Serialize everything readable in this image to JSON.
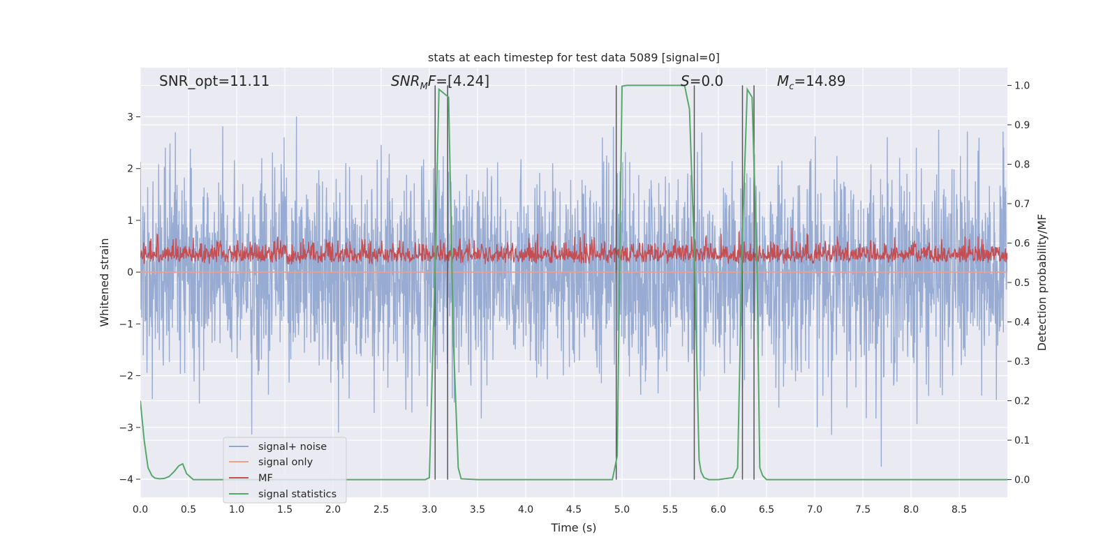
{
  "chart_data": {
    "type": "line",
    "title": "stats at each timestep for test data 5089 [signal=0]",
    "xlabel": "Time (s)",
    "ylabel_left": "Whitened strain",
    "ylabel_right": "Detection probability/MF",
    "xlim": [
      0.0,
      9.0
    ],
    "ylim_left": [
      -4.35,
      3.95
    ],
    "ylim_right": [
      -0.045,
      1.045
    ],
    "x_ticks": [
      "0.0",
      "0.5",
      "1.0",
      "1.5",
      "2.0",
      "2.5",
      "3.0",
      "3.5",
      "4.0",
      "4.5",
      "5.0",
      "5.5",
      "6.0",
      "6.5",
      "7.0",
      "7.5",
      "8.0",
      "8.5"
    ],
    "y_ticks_left": [
      "−4",
      "−3",
      "−2",
      "−1",
      "0",
      "1",
      "2",
      "3"
    ],
    "y_ticks_right": [
      "0.0",
      "0.1",
      "0.2",
      "0.3",
      "0.4",
      "0.5",
      "0.6",
      "0.7",
      "0.8",
      "0.9",
      "1.0"
    ],
    "grid": true,
    "annotations": {
      "snr_opt": "SNR_opt=11.11",
      "snr_mf_main": "SNR",
      "snr_mf_sub": "M",
      "snr_mf_rest": "F=[4.24]",
      "s_main": "S",
      "s_rest": "=0.0",
      "mc_main": "M",
      "mc_sub": "c",
      "mc_rest": "=14.89"
    },
    "legend": {
      "position": "lower-left",
      "entries": [
        "signal+ noise",
        "signal only",
        "MF",
        "signal statistics"
      ]
    },
    "series": [
      {
        "name": "signal+ noise",
        "axis": "left",
        "color": "#92a8d1",
        "style": "dense noise, range approx -4.0 to 3.6"
      },
      {
        "name": "signal only",
        "axis": "left",
        "color": "#e8a28a",
        "value": 0.0
      },
      {
        "name": "MF",
        "axis": "right",
        "color": "#c44e52",
        "style": "noise around 0.55, range approx 0.51 to 0.65"
      },
      {
        "name": "signal statistics",
        "axis": "right",
        "color": "#55a868",
        "x": [
          0.0,
          0.04,
          0.08,
          0.12,
          0.15,
          0.2,
          0.25,
          0.3,
          0.35,
          0.4,
          0.44,
          0.48,
          0.55,
          0.6,
          1.0,
          2.0,
          2.5,
          2.96,
          3.0,
          3.05,
          3.1,
          3.15,
          3.2,
          3.25,
          3.3,
          3.33,
          3.5,
          4.0,
          4.5,
          4.9,
          4.95,
          5.0,
          5.05,
          5.3,
          5.6,
          5.65,
          5.7,
          5.75,
          5.8,
          5.82,
          5.85,
          5.9,
          6.0,
          6.15,
          6.2,
          6.25,
          6.3,
          6.35,
          6.4,
          6.43,
          6.46,
          6.5,
          7.0,
          8.0,
          9.0
        ],
        "y": [
          0.2,
          0.1,
          0.03,
          0.01,
          0.004,
          0.002,
          0.003,
          0.008,
          0.02,
          0.035,
          0.04,
          0.015,
          0.0,
          0.0,
          0.0,
          0.0,
          0.0,
          0.0,
          0.005,
          0.45,
          0.99,
          0.98,
          0.97,
          0.35,
          0.03,
          0.002,
          0.0,
          0.0,
          0.0,
          0.0,
          0.06,
          0.998,
          1.0,
          1.0,
          1.0,
          0.999,
          0.94,
          0.58,
          0.05,
          0.02,
          0.005,
          0.0,
          0.0,
          0.005,
          0.03,
          0.62,
          0.99,
          0.97,
          0.55,
          0.03,
          0.01,
          0.0,
          0.0,
          0.0,
          0.0
        ]
      }
    ],
    "vertical_markers": [
      3.06,
      3.19,
      4.94,
      5.75,
      6.25,
      6.37
    ]
  }
}
